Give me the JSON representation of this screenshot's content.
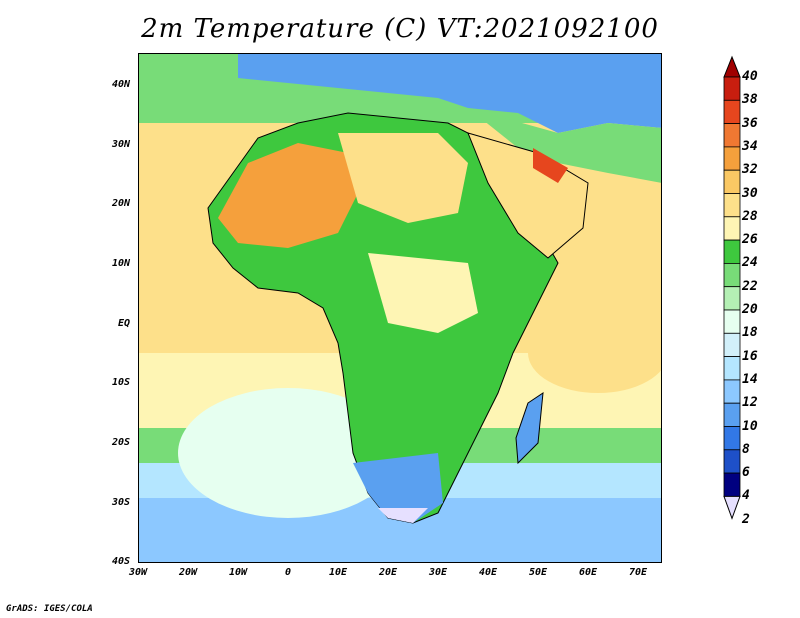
{
  "title": "2m Temperature (C) VT:2021092100",
  "credit": "GrADS: IGES/COLA",
  "y_ticks": [
    "40N",
    "30N",
    "20N",
    "10N",
    "EQ",
    "10S",
    "20S",
    "30S",
    "40S"
  ],
  "x_ticks": [
    "30W",
    "20W",
    "10W",
    "0",
    "10E",
    "20E",
    "30E",
    "40E",
    "50E",
    "60E",
    "70E"
  ],
  "colorbar": {
    "labels": [
      "40",
      "38",
      "36",
      "34",
      "32",
      "30",
      "28",
      "26",
      "24",
      "22",
      "20",
      "18",
      "16",
      "14",
      "12",
      "10",
      "8",
      "6",
      "4",
      "2"
    ],
    "colors": [
      "#a00000",
      "#c81e0f",
      "#e6461e",
      "#f07832",
      "#f5a03c",
      "#fac864",
      "#fde08a",
      "#fef5b4",
      "#3ec83e",
      "#78dc78",
      "#b4f0b4",
      "#e6fff0",
      "#d2f0fa",
      "#b4e6ff",
      "#8cc8ff",
      "#5aa0f0",
      "#3278e6",
      "#1e50c8",
      "#000080",
      "#e6e0ff"
    ]
  },
  "map_colors": {
    "ocean_warm": "#fde08a",
    "ocean_mild": "#fef5b4",
    "ocean_green": "#78dc78",
    "ocean_cool": "#b4e6ff",
    "ocean_cold": "#5aa0f0",
    "land_hot": "#f5a03c",
    "land_warm": "#fde08a",
    "land_green": "#3ec83e",
    "gulf_hot": "#e6461e"
  }
}
